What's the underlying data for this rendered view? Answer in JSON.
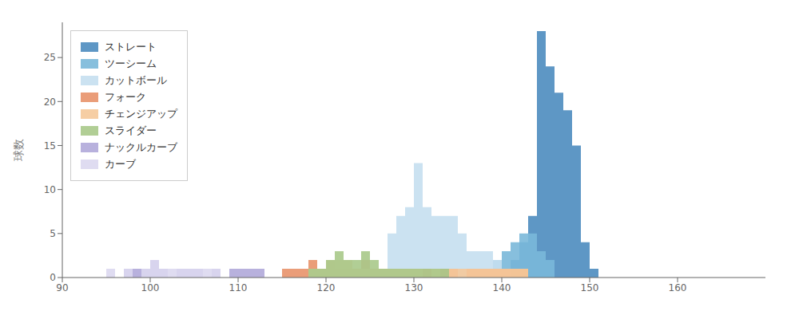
{
  "chart_data": {
    "type": "histogram",
    "ylabel": "球数",
    "xlim": [
      90,
      170
    ],
    "ylim": [
      0,
      29
    ],
    "xticks": [
      90,
      100,
      110,
      120,
      130,
      140,
      150,
      160
    ],
    "yticks": [
      0,
      5,
      10,
      15,
      20,
      25
    ],
    "grid": false,
    "legend": "upper left",
    "bins": [
      90,
      91,
      92,
      93,
      94,
      95,
      96,
      97,
      98,
      99,
      100,
      101,
      102,
      103,
      104,
      105,
      106,
      107,
      108,
      109,
      110,
      111,
      112,
      113,
      114,
      115,
      116,
      117,
      118,
      119,
      120,
      121,
      122,
      123,
      124,
      125,
      126,
      127,
      128,
      129,
      130,
      131,
      132,
      133,
      134,
      135,
      136,
      137,
      138,
      139,
      140,
      141,
      142,
      143,
      144,
      145,
      146,
      147,
      148,
      149,
      150,
      151,
      152,
      153,
      154,
      155,
      156,
      157,
      158,
      159,
      160,
      161,
      162,
      163,
      164,
      165,
      166,
      167,
      168,
      169,
      170
    ],
    "series": [
      {
        "name": "ストレート",
        "color": "#4c8cbf",
        "values": [
          0,
          0,
          0,
          0,
          0,
          0,
          0,
          0,
          0,
          0,
          0,
          0,
          0,
          0,
          0,
          0,
          0,
          0,
          0,
          0,
          0,
          0,
          0,
          0,
          0,
          0,
          0,
          0,
          0,
          0,
          0,
          0,
          0,
          0,
          0,
          0,
          0,
          0,
          0,
          0,
          0,
          0,
          0,
          0,
          0,
          0,
          0,
          0,
          0,
          0,
          1,
          2,
          4,
          7,
          28,
          24,
          21,
          19,
          15,
          4,
          1,
          0,
          0,
          0,
          0,
          0,
          0,
          0,
          0,
          0,
          0,
          0,
          0,
          0,
          0,
          0,
          0,
          0,
          0,
          0
        ]
      },
      {
        "name": "ツーシーム",
        "color": "#7ab8d9",
        "values": [
          0,
          0,
          0,
          0,
          0,
          0,
          0,
          0,
          0,
          0,
          0,
          0,
          0,
          0,
          0,
          0,
          0,
          0,
          0,
          0,
          0,
          0,
          0,
          0,
          0,
          0,
          0,
          0,
          0,
          0,
          0,
          0,
          0,
          0,
          0,
          0,
          0,
          0,
          0,
          0,
          0,
          0,
          0,
          0,
          0,
          0,
          0,
          0,
          0,
          2,
          3,
          4,
          5,
          5,
          3,
          2,
          0,
          0,
          0,
          0,
          0,
          0,
          0,
          0,
          0,
          0,
          0,
          0,
          0,
          0,
          0,
          0,
          0,
          0,
          0,
          0,
          0,
          0,
          0,
          0
        ]
      },
      {
        "name": "カットボール",
        "color": "#c5dff0",
        "values": [
          0,
          0,
          0,
          0,
          0,
          0,
          0,
          0,
          0,
          0,
          0,
          0,
          0,
          0,
          0,
          0,
          0,
          0,
          0,
          0,
          0,
          0,
          0,
          0,
          0,
          0,
          0,
          0,
          0,
          0,
          0,
          0,
          0,
          0,
          0,
          0,
          0,
          5,
          7,
          8,
          13,
          8,
          7,
          7,
          7,
          5,
          3,
          3,
          3,
          2,
          1,
          0,
          0,
          0,
          0,
          0,
          0,
          0,
          0,
          0,
          0,
          0,
          0,
          0,
          0,
          0,
          0,
          0,
          0,
          0,
          0,
          0,
          0,
          0,
          0,
          0,
          0,
          0,
          0,
          0
        ]
      },
      {
        "name": "フォーク",
        "color": "#e8926a",
        "values": [
          0,
          0,
          0,
          0,
          0,
          0,
          0,
          0,
          0,
          0,
          0,
          0,
          0,
          0,
          0,
          0,
          0,
          0,
          0,
          0,
          0,
          0,
          0,
          0,
          0,
          1,
          1,
          1,
          2,
          1,
          2,
          1,
          1,
          1,
          2,
          1,
          1,
          1,
          1,
          1,
          1,
          1,
          0,
          1,
          1,
          0,
          1,
          1,
          1,
          1,
          1,
          1,
          1,
          0,
          0,
          0,
          0,
          0,
          0,
          0,
          0,
          0,
          0,
          0,
          0,
          0,
          0,
          0,
          0,
          0,
          0,
          0,
          0,
          0,
          0,
          0,
          0,
          0,
          0,
          0
        ]
      },
      {
        "name": "チェンジアップ",
        "color": "#f5c99a",
        "values": [
          0,
          0,
          0,
          0,
          0,
          0,
          0,
          0,
          0,
          0,
          0,
          0,
          0,
          0,
          0,
          0,
          0,
          0,
          0,
          0,
          0,
          0,
          0,
          0,
          0,
          0,
          0,
          0,
          1,
          1,
          2,
          2,
          2,
          1,
          1,
          1,
          1,
          1,
          1,
          1,
          1,
          0,
          1,
          0,
          1,
          1,
          1,
          1,
          1,
          1,
          1,
          1,
          1,
          0,
          0,
          0,
          0,
          0,
          0,
          0,
          0,
          0,
          0,
          0,
          0,
          0,
          0,
          0,
          0,
          0,
          0,
          0,
          0,
          0,
          0,
          0,
          0,
          0,
          0,
          0
        ]
      },
      {
        "name": "スライダー",
        "color": "#a8c98a",
        "values": [
          0,
          0,
          0,
          0,
          0,
          0,
          0,
          0,
          0,
          0,
          0,
          0,
          0,
          0,
          0,
          0,
          0,
          0,
          0,
          0,
          0,
          0,
          0,
          0,
          0,
          0,
          0,
          0,
          1,
          1,
          2,
          3,
          2,
          2,
          3,
          2,
          1,
          1,
          1,
          1,
          1,
          1,
          1,
          1,
          0,
          0,
          0,
          0,
          0,
          0,
          0,
          0,
          0,
          0,
          0,
          0,
          0,
          0,
          0,
          0,
          0,
          0,
          0,
          0,
          0,
          0,
          0,
          0,
          0,
          0,
          0,
          0,
          0,
          0,
          0,
          0,
          0,
          0,
          0,
          0
        ]
      },
      {
        "name": "ナックルカーブ",
        "color": "#b0a8d9",
        "values": [
          0,
          0,
          0,
          0,
          0,
          0,
          0,
          1,
          1,
          1,
          2,
          1,
          0,
          1,
          1,
          1,
          0,
          1,
          0,
          1,
          1,
          1,
          1,
          0,
          0,
          0,
          0,
          0,
          0,
          0,
          0,
          0,
          0,
          0,
          0,
          0,
          0,
          0,
          0,
          0,
          0,
          0,
          0,
          0,
          0,
          0,
          0,
          0,
          0,
          0,
          0,
          0,
          0,
          0,
          0,
          0,
          0,
          0,
          0,
          0,
          0,
          0,
          0,
          0,
          0,
          0,
          0,
          0,
          0,
          0,
          0,
          0,
          0,
          0,
          0,
          0,
          0,
          0,
          0,
          0
        ]
      },
      {
        "name": "カーブ",
        "color": "#dcd8f0",
        "values": [
          0,
          0,
          0,
          0,
          0,
          1,
          0,
          1,
          0,
          1,
          2,
          1,
          1,
          1,
          1,
          1,
          1,
          1,
          0,
          0,
          0,
          0,
          0,
          0,
          0,
          0,
          0,
          0,
          0,
          0,
          0,
          0,
          0,
          0,
          0,
          0,
          0,
          0,
          0,
          0,
          0,
          0,
          0,
          0,
          0,
          0,
          0,
          0,
          0,
          0,
          0,
          0,
          0,
          0,
          0,
          0,
          0,
          0,
          0,
          0,
          0,
          0,
          0,
          0,
          0,
          0,
          0,
          0,
          0,
          0,
          0,
          0,
          0,
          0,
          0,
          0,
          0,
          0,
          0,
          0
        ]
      }
    ]
  }
}
